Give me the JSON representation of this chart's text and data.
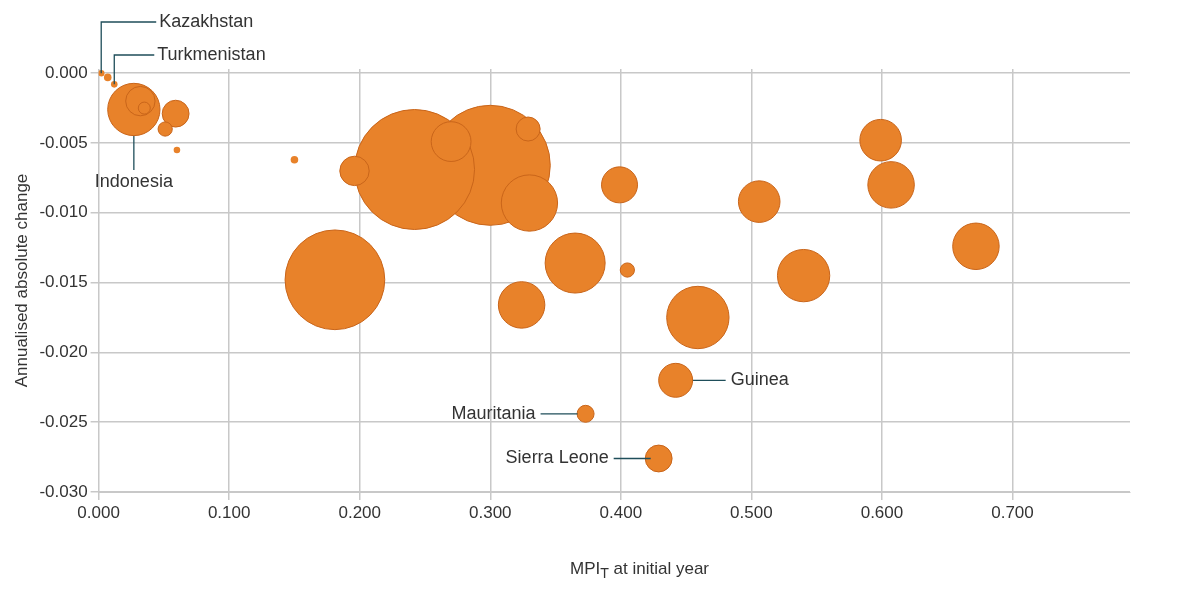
{
  "chart_data": {
    "type": "bubble",
    "xlabel": "MPI$_{T}$ at initial year",
    "ylabel": "Annualised absolute change",
    "color": "#e8822a",
    "x": [
      0.3,
      0.242,
      0.181,
      0.459,
      0.365,
      0.33,
      0.027,
      0.54,
      0.324,
      0.607,
      0.672,
      0.506,
      0.599,
      0.27,
      0.399,
      0.442,
      0.032,
      0.196,
      0.059,
      0.429,
      0.329,
      0.373,
      0.051,
      0.405,
      0.035,
      0.15,
      0.06,
      0.002,
      0.007,
      0.012
    ],
    "values": [
      -0.0066,
      -0.0069,
      -0.0148,
      -0.0175,
      -0.0136,
      -0.0093,
      -0.0026,
      -0.0145,
      -0.0166,
      -0.008,
      -0.0124,
      -0.0092,
      -0.0048,
      -0.0049,
      -0.008,
      -0.022,
      -0.002,
      -0.007,
      -0.0029,
      -0.0276,
      -0.004,
      -0.0244,
      -0.004,
      -0.0141,
      -0.0025,
      -0.0062,
      -0.0055,
      0,
      -0.0003,
      -0.0008
    ],
    "sizes": [
      1,
      1,
      0.69,
      0.27,
      0.25,
      0.22,
      0.19,
      0.19,
      0.15,
      0.15,
      0.15,
      0.12,
      0.12,
      0.11,
      0.09,
      0.08,
      0.06,
      0.06,
      0.05,
      0.05,
      0.04,
      0.02,
      0.014,
      0.014,
      0.01,
      0.004,
      0.003,
      0.003,
      0.004,
      0.003
    ],
    "xlim": [
      0,
      0.79
    ],
    "ylim": [
      -0.03,
      0.0003
    ],
    "xticks": [
      {
        "value": 0,
        "label": "0.000"
      },
      {
        "value": 0.1,
        "label": "0.100"
      },
      {
        "value": 0.2,
        "label": "0.200"
      },
      {
        "value": 0.3,
        "label": "0.300"
      },
      {
        "value": 0.4,
        "label": "0.400"
      },
      {
        "value": 0.5,
        "label": "0.500"
      },
      {
        "value": 0.6,
        "label": "0.600"
      },
      {
        "value": 0.7,
        "label": "0.700"
      }
    ],
    "yticks": [
      {
        "value": 0,
        "label": "0.000"
      },
      {
        "value": -0.005,
        "label": "-0.005"
      },
      {
        "value": -0.01,
        "label": "-0.010"
      },
      {
        "value": -0.015,
        "label": "-0.015"
      },
      {
        "value": -0.02,
        "label": "-0.020"
      },
      {
        "value": -0.025,
        "label": "-0.025"
      },
      {
        "value": -0.03,
        "label": "-0.030"
      }
    ],
    "grid": true,
    "annotations": [
      {
        "text": "Kazakhstan",
        "x": 0.002,
        "y": 0
      },
      {
        "text": "Turkmenistan",
        "x": 0.012,
        "y": -0.0008
      },
      {
        "text": "Indonesia",
        "x": 0.027,
        "y": -0.0026
      },
      {
        "text": "Guinea",
        "x": 0.442,
        "y": -0.022
      },
      {
        "text": "Mauritania",
        "x": 0.373,
        "y": -0.0244
      },
      {
        "text": "Sierra Leone",
        "x": 0.429,
        "y": -0.0276
      }
    ]
  }
}
